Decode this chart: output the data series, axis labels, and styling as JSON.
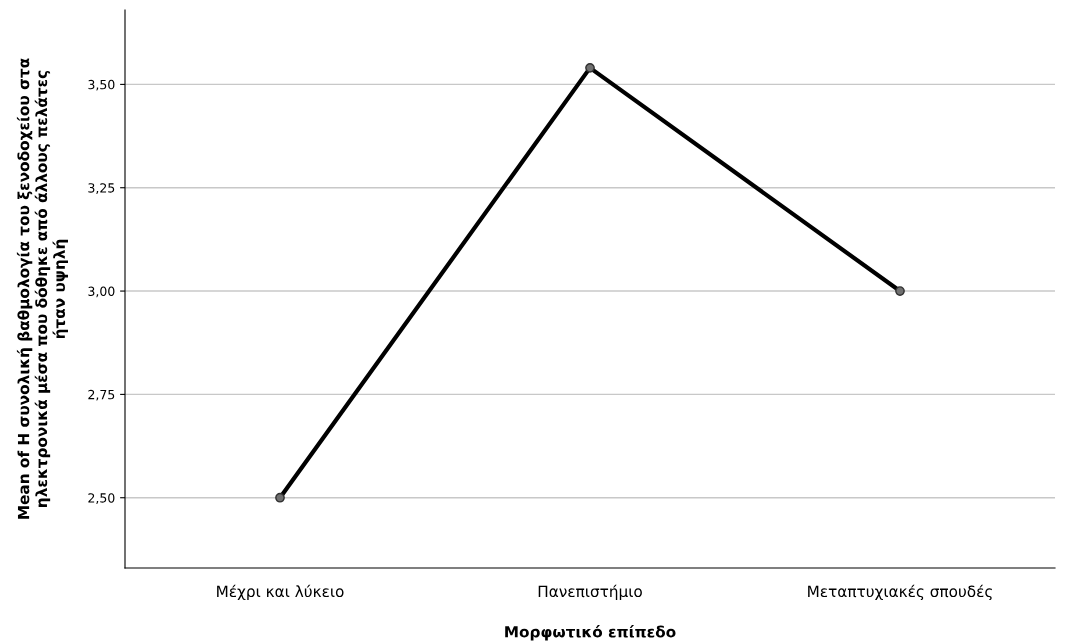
{
  "chart_data": {
    "type": "line",
    "xlabel": "Μορφωτικό επίπεδο",
    "ylabel": "Mean of Η συνολική βαθμολογία του ξενοδοχείου στα\nηλεκτρονικά μέσα που δόθηκε από άλλους πελάτες\nήταν υψηλή",
    "categories": [
      "Μέχρι και λύκειο",
      "Πανεπιστήμιο",
      "Μεταπτυχιακές σπουδές"
    ],
    "series": [
      {
        "color": "#000000",
        "values": [
          2.5,
          3.54,
          3.0
        ]
      }
    ],
    "ylim": [
      2.33,
      3.68
    ],
    "yticks": [
      {
        "value": 2.5,
        "label": "2,50"
      },
      {
        "value": 2.75,
        "label": "2,75"
      },
      {
        "value": 3.0,
        "label": "3,00"
      },
      {
        "value": 3.25,
        "label": "3,25"
      },
      {
        "value": 3.5,
        "label": "3,50"
      }
    ],
    "grid": "y",
    "marker": "circle",
    "line_style": "solid"
  }
}
